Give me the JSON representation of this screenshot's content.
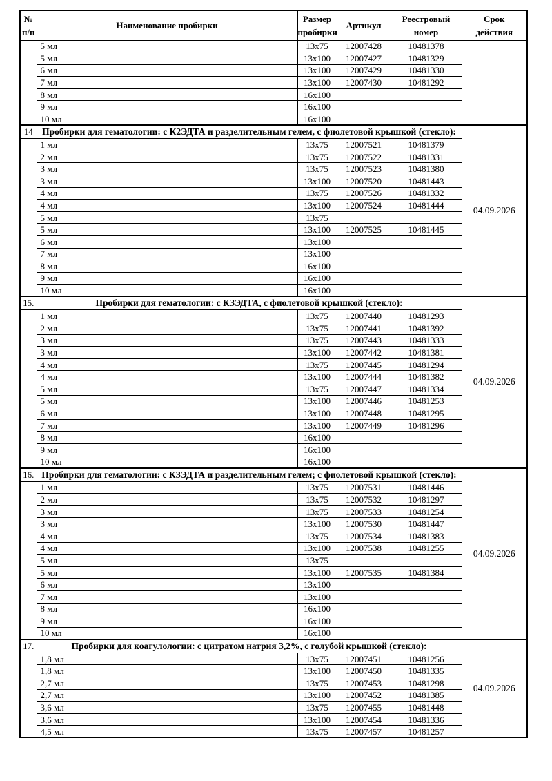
{
  "table": {
    "header": {
      "number": "№\nп/п",
      "name": "Наименование пробирки",
      "size": "Размер\nпробирки",
      "article": "Артикул",
      "registry": "Реестровый\nномер",
      "expiry": "Срок\nдействия"
    },
    "sections": [
      {
        "number": "",
        "title": "",
        "expiry": "",
        "rows": [
          [
            "5 мл",
            "13x75",
            "12007428",
            "10481378"
          ],
          [
            "5 мл",
            "13x100",
            "12007427",
            "10481329"
          ],
          [
            "6 мл",
            "13x100",
            "12007429",
            "10481330"
          ],
          [
            "7 мл",
            "13x100",
            "12007430",
            "10481292"
          ],
          [
            "8 мл",
            "16x100",
            "",
            ""
          ],
          [
            "9 мл",
            "16x100",
            "",
            ""
          ],
          [
            "10 мл",
            "16x100",
            "",
            ""
          ]
        ]
      },
      {
        "number": "14",
        "title": "Пробирки для гематологии: с К2ЭДТА и разделительным гелем, с фиолетовой крышкой (стекло):",
        "expiry": "04.09.2026",
        "rows": [
          [
            "1 мл",
            "13x75",
            "12007521",
            "10481379"
          ],
          [
            "2 мл",
            "13x75",
            "12007522",
            "10481331"
          ],
          [
            "3 мл",
            "13x75",
            "12007523",
            "10481380"
          ],
          [
            "3 мл",
            "13x100",
            "12007520",
            "10481443"
          ],
          [
            "4 мл",
            "13x75",
            "12007526",
            "10481332"
          ],
          [
            "4 мл",
            "13x100",
            "12007524",
            "10481444"
          ],
          [
            "5 мл",
            "13x75",
            "",
            ""
          ],
          [
            "5 мл",
            "13x100",
            "12007525",
            "10481445"
          ],
          [
            "6 мл",
            "13x100",
            "",
            ""
          ],
          [
            "7 мл",
            "13x100",
            "",
            ""
          ],
          [
            "8 мл",
            "16x100",
            "",
            ""
          ],
          [
            "9 мл",
            "16x100",
            "",
            ""
          ],
          [
            "10 мл",
            "16x100",
            "",
            ""
          ]
        ]
      },
      {
        "number": "15.",
        "title": "Пробирки для гематологии: с КЗЭДТА, с фиолетовой крышкой (стекло):",
        "expiry": "04.09.2026",
        "rows": [
          [
            "1 мл",
            "13x75",
            "12007440",
            "10481293"
          ],
          [
            "2 мл",
            "13x75",
            "12007441",
            "10481392"
          ],
          [
            "3 мл",
            "13x75",
            "12007443",
            "10481333"
          ],
          [
            "3 мл",
            "13x100",
            "12007442",
            "10481381"
          ],
          [
            "4 мл",
            "13x75",
            "12007445",
            "10481294"
          ],
          [
            "4 мл",
            "13x100",
            "12007444",
            "10481382"
          ],
          [
            "5 мл",
            "13x75",
            "12007447",
            "10481334"
          ],
          [
            "5 мл",
            "13x100",
            "12007446",
            "10481253"
          ],
          [
            "6 мл",
            "13x100",
            "12007448",
            "10481295"
          ],
          [
            "7 мл",
            "13x100",
            "12007449",
            "10481296"
          ],
          [
            "8 мл",
            "16x100",
            "",
            ""
          ],
          [
            "9 мл",
            "16x100",
            "",
            ""
          ],
          [
            "10 мл",
            "16x100",
            "",
            ""
          ]
        ]
      },
      {
        "number": "16.",
        "title": "Пробирки для гематологии: с КЗЭДТА и разделительным гелем; с фиолетовой крышкой (стекло):",
        "expiry": "04.09.2026",
        "rows": [
          [
            "1 мл",
            "13x75",
            "12007531",
            "10481446"
          ],
          [
            "2 мл",
            "13x75",
            "12007532",
            "10481297"
          ],
          [
            "3 мл",
            "13x75",
            "12007533",
            "10481254"
          ],
          [
            "3 мл",
            "13x100",
            "12007530",
            "10481447"
          ],
          [
            "4 мл",
            "13x75",
            "12007534",
            "10481383"
          ],
          [
            "4 мл",
            "13x100",
            "12007538",
            "10481255"
          ],
          [
            "5 мл",
            "13x75",
            "",
            ""
          ],
          [
            "5 мл",
            "13x100",
            "12007535",
            "10481384"
          ],
          [
            "6 мл",
            "13x100",
            "",
            ""
          ],
          [
            "7 мл",
            "13x100",
            "",
            ""
          ],
          [
            "8 мл",
            "16x100",
            "",
            ""
          ],
          [
            "9 мл",
            "16x100",
            "",
            ""
          ],
          [
            "10 мл",
            "16x100",
            "",
            ""
          ]
        ]
      },
      {
        "number": "17.",
        "title": "Пробирки для коагулологии: с цитратом натрия 3,2%, с голубой крышкой (стекло):",
        "expiry": "04.09.2026",
        "rows": [
          [
            "1,8 мл",
            "13x75",
            "12007451",
            "10481256"
          ],
          [
            "1,8 мл",
            "13x100",
            "12007450",
            "10481335"
          ],
          [
            "2,7 мл",
            "13x75",
            "12007453",
            "10481298"
          ],
          [
            "2,7 мл",
            "13x100",
            "12007452",
            "10481385"
          ],
          [
            "3,6 мл",
            "13x75",
            "12007455",
            "10481448"
          ],
          [
            "3,6 мл",
            "13x100",
            "12007454",
            "10481336"
          ],
          [
            "4,5 мл",
            "13x75",
            "12007457",
            "10481257"
          ]
        ]
      }
    ]
  }
}
